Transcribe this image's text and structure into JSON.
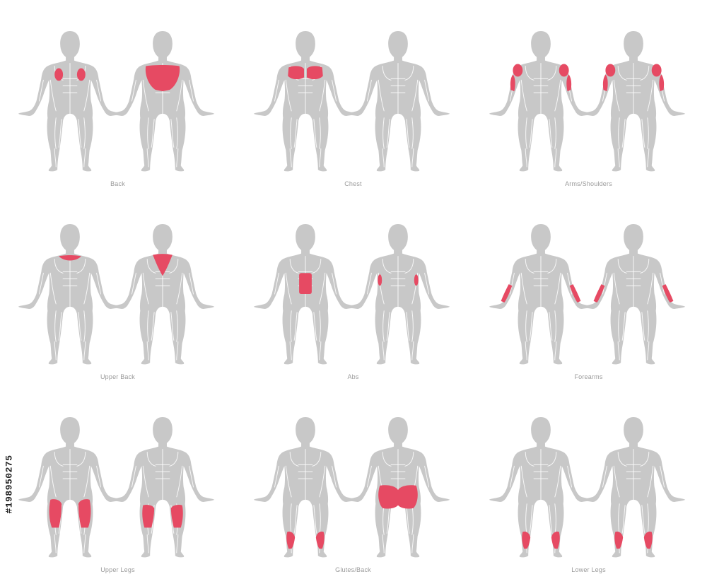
{
  "colors": {
    "body": "#c8c8c8",
    "lines": "#ffffff",
    "highlight": "#e64a63",
    "label": "#9a9a9a"
  },
  "panels": [
    {
      "label": "Back",
      "front": [
        "lats"
      ],
      "back": [
        "upper-back-wide"
      ]
    },
    {
      "label": "Chest",
      "front": [
        "chest"
      ],
      "back": []
    },
    {
      "label": "Arms/Shoulders",
      "front": [
        "shoulders",
        "upper-arms"
      ],
      "back": [
        "shoulders",
        "upper-arms"
      ]
    },
    {
      "label": "Upper Back",
      "front": [
        "traps-top"
      ],
      "back": [
        "traps"
      ]
    },
    {
      "label": "Abs",
      "front": [
        "abs"
      ],
      "back": [
        "obliques"
      ]
    },
    {
      "label": "Forearms",
      "front": [
        "forearms"
      ],
      "back": [
        "forearms"
      ]
    },
    {
      "label": "Upper Legs",
      "front": [
        "quads"
      ],
      "back": [
        "hamstrings"
      ]
    },
    {
      "label": "Glutes/Back",
      "front": [
        "calves"
      ],
      "back": [
        "glutes"
      ]
    },
    {
      "label": "Lower Legs",
      "front": [
        "calves"
      ],
      "back": [
        "calves"
      ]
    }
  ],
  "watermark_id": "#198950275"
}
